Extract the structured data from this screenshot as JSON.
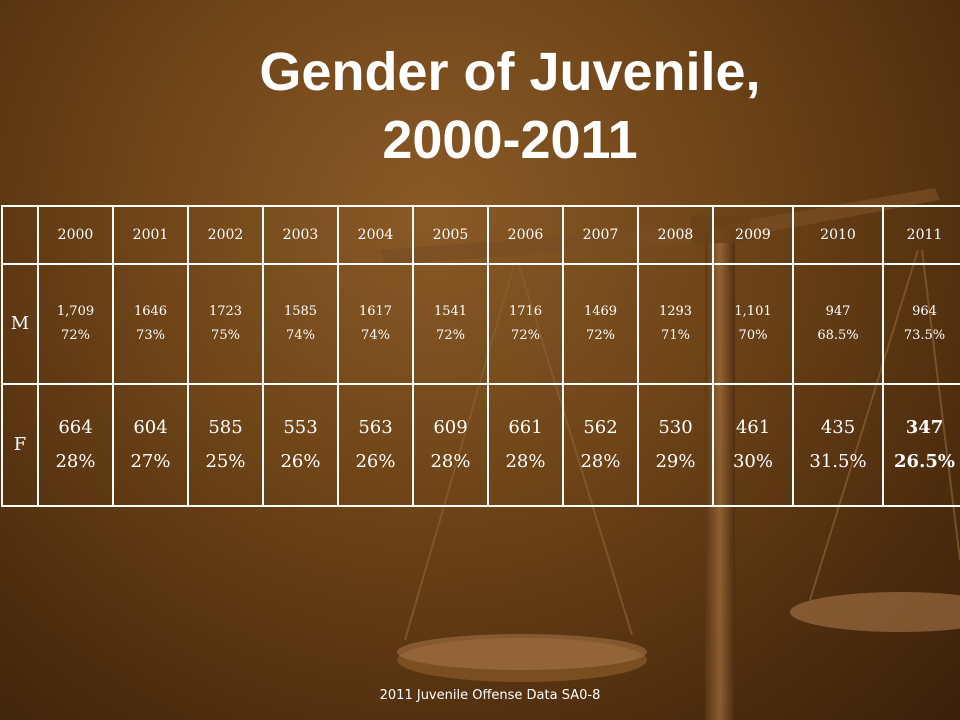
{
  "title_line1": "Gender of Juvenile,",
  "title_line2": "2000-2011",
  "table": {
    "years": [
      "2000",
      "2001",
      "2002",
      "2003",
      "2004",
      "2005",
      "2006",
      "2007",
      "2008",
      "2009",
      "2010",
      "2011"
    ],
    "rows": [
      {
        "label": "M",
        "counts": [
          "1,709",
          "1646",
          "1723",
          "1585",
          "1617",
          "1541",
          "1716",
          "1469",
          "1293",
          "1,101",
          "947",
          "964"
        ],
        "percents": [
          "72%",
          "73%",
          "75%",
          "74%",
          "74%",
          "72%",
          "72%",
          "72%",
          "71%",
          "70%",
          "68.5%",
          "73.5%"
        ]
      },
      {
        "label": "F",
        "counts": [
          "664",
          "604",
          "585",
          "553",
          "563",
          "609",
          "661",
          "562",
          "530",
          "461",
          "435",
          "347"
        ],
        "percents": [
          "28%",
          "27%",
          "25%",
          "26%",
          "26%",
          "28%",
          "28%",
          "28%",
          "29%",
          "30%",
          "31.5%",
          "26.5%"
        ]
      }
    ]
  },
  "footer": "2011 Juvenile Offense Data   SA0-8",
  "colors": {
    "background": "#6e4418",
    "text": "#ffffff",
    "f_text": "#f1d8b8"
  }
}
